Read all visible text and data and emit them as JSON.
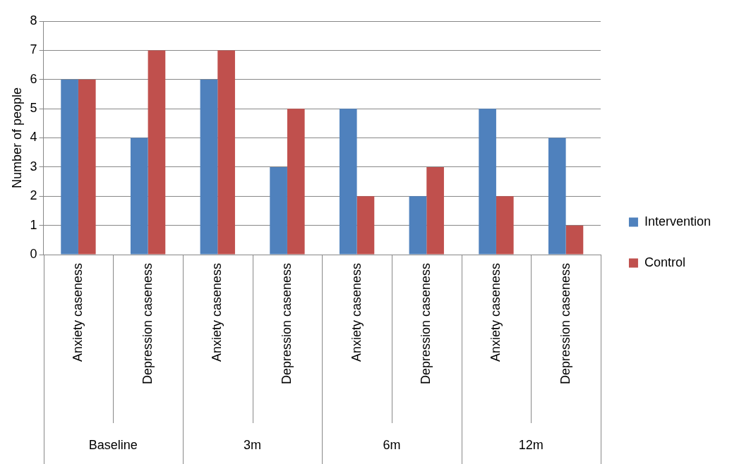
{
  "chart_data": {
    "type": "bar",
    "ylabel": "Number of people",
    "categories": [
      "Anxiety caseness",
      "Depression caseness",
      "Anxiety caseness",
      "Depression caseness",
      "Anxiety caseness",
      "Depression caseness",
      "Anxiety caseness",
      "Depression caseness"
    ],
    "series": [
      {
        "name": "Intervention",
        "color": "#4f81bd",
        "values": [
          6,
          4,
          6,
          3,
          5,
          2,
          5,
          4
        ]
      },
      {
        "name": "Control",
        "color": "#c0504d",
        "values": [
          6,
          7,
          7,
          5,
          2,
          3,
          2,
          1
        ]
      }
    ],
    "annotations": [
      "Baseline",
      "3m",
      "6m",
      "12m"
    ],
    "ylim": [
      0,
      8
    ],
    "yticks": [
      0,
      1,
      2,
      3,
      4,
      5,
      6,
      7,
      8
    ],
    "grid": "y",
    "legend": "right"
  }
}
